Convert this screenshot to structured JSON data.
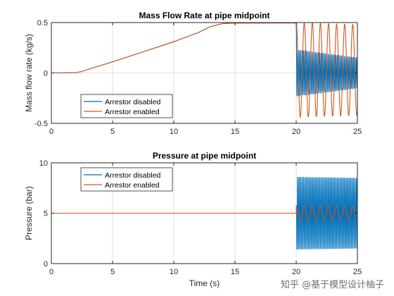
{
  "watermark": "知乎 @基于模型设计柚子",
  "colors": {
    "disabled": "#0072BD",
    "enabled": "#D95319"
  },
  "chart_data": [
    {
      "type": "line",
      "title": "Mass Flow Rate at pipe midpoint",
      "xlabel": "",
      "ylabel": "Mass flow rate (kg/s)",
      "xlim": [
        0,
        25
      ],
      "ylim": [
        -0.5,
        0.5
      ],
      "xticks": [
        0,
        5,
        10,
        15,
        20,
        25
      ],
      "yticks": [
        -0.5,
        0,
        0.5
      ],
      "grid": true,
      "legend_position": "bottom-left",
      "series": [
        {
          "name": "Arrestor disabled",
          "color": "#0072BD",
          "points": [
            [
              0,
              0
            ],
            [
              2,
              0.003
            ],
            [
              2.5,
              0.015
            ],
            [
              3,
              0.035
            ],
            [
              5,
              0.11
            ],
            [
              7.5,
              0.21
            ],
            [
              10,
              0.31
            ],
            [
              12,
              0.4
            ],
            [
              13,
              0.46
            ],
            [
              14,
              0.49
            ],
            [
              15,
              0.495
            ],
            [
              20,
              0.497
            ]
          ],
          "oscillation": {
            "t_start": 20,
            "t_end": 25,
            "center": 0,
            "amplitude_start": 0.23,
            "amplitude_end": 0.15,
            "period": 0.12
          }
        },
        {
          "name": "Arrestor enabled",
          "color": "#D95319",
          "points": [
            [
              0,
              0
            ],
            [
              2,
              0.003
            ],
            [
              2.5,
              0.015
            ],
            [
              3,
              0.035
            ],
            [
              5,
              0.11
            ],
            [
              7.5,
              0.21
            ],
            [
              10,
              0.31
            ],
            [
              12,
              0.4
            ],
            [
              13,
              0.46
            ],
            [
              14,
              0.49
            ],
            [
              15,
              0.495
            ],
            [
              20,
              0.497
            ]
          ],
          "oscillation": {
            "t_start": 20,
            "t_end": 25,
            "center": 0.03,
            "amplitude_start": 0.47,
            "amplitude_end": 0.45,
            "period": 0.66
          }
        }
      ]
    },
    {
      "type": "line",
      "title": "Pressure at pipe midpoint",
      "xlabel": "Time (s)",
      "ylabel": "Pressure (bar)",
      "xlim": [
        0,
        25
      ],
      "ylim": [
        0,
        10
      ],
      "xticks": [
        0,
        5,
        10,
        15,
        20,
        25
      ],
      "yticks": [
        0,
        5,
        10
      ],
      "grid": true,
      "legend_position": "top-left",
      "series": [
        {
          "name": "Arrestor disabled",
          "color": "#0072BD",
          "points": [
            [
              0,
              5
            ],
            [
              20,
              5
            ]
          ],
          "oscillation": {
            "t_start": 20,
            "t_end": 25,
            "center": 5.0,
            "amplitude_start": 3.6,
            "amplitude_end": 3.5,
            "period": 0.12
          }
        },
        {
          "name": "Arrestor enabled",
          "color": "#D95319",
          "points": [
            [
              0,
              5
            ],
            [
              20,
              5
            ]
          ],
          "oscillation": {
            "t_start": 20,
            "t_end": 25,
            "center": 5.0,
            "amplitude_start": 0.8,
            "amplitude_end": 0.7,
            "period": 0.66
          }
        }
      ]
    }
  ]
}
